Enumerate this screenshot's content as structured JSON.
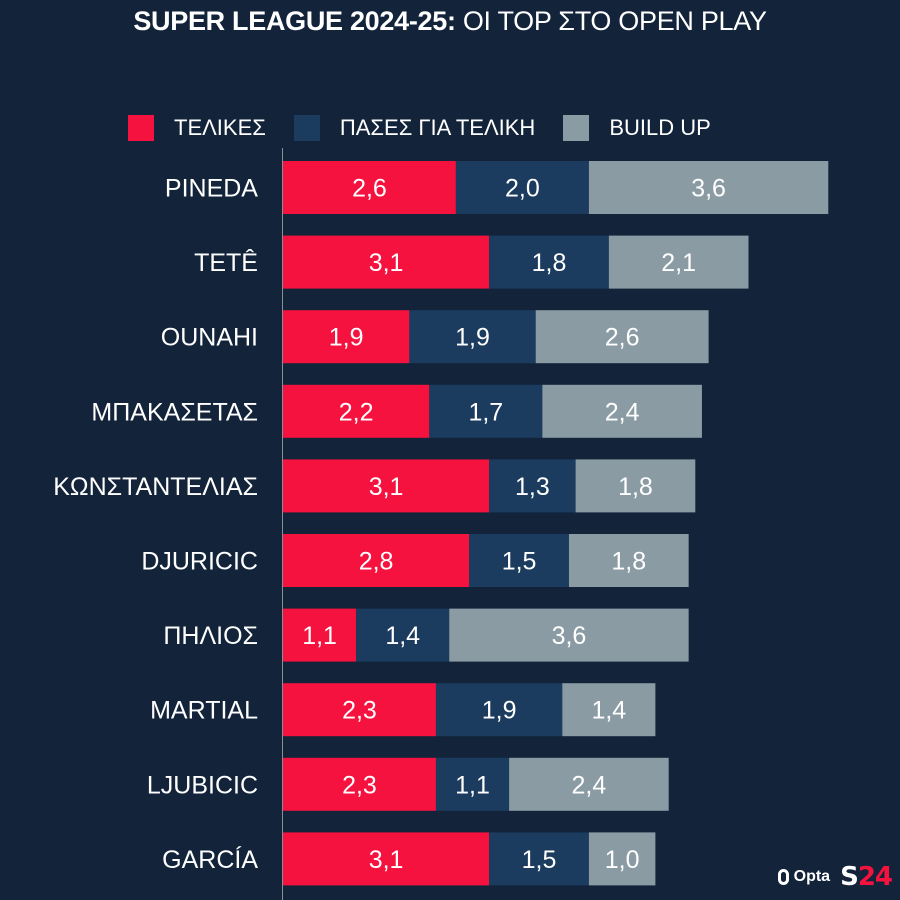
{
  "title": {
    "bold": "SUPER LEAGUE 2024-25:",
    "light": "ΟΙ ΤΟΡ ΣΤΟ OPEN PLAY"
  },
  "colors": {
    "background": "#12233a",
    "telikes": "#f5123f",
    "pases": "#1b3b5f",
    "buildup": "#8b9ba4",
    "axis": "#8a8f96"
  },
  "legend": [
    {
      "label": "ΤΕΛΙΚΕΣ",
      "color": "#f5123f"
    },
    {
      "label": "ΠΑΣΕΣ ΓΙΑ ΤΕΛΙΚΗ",
      "color": "#1b3b5f"
    },
    {
      "label": "BUILD UP",
      "color": "#8b9ba4"
    }
  ],
  "logos": {
    "opta": "Opta",
    "s24_s": "S",
    "s24_n": "24"
  },
  "chart_data": {
    "type": "bar",
    "orientation": "horizontal",
    "stacked": true,
    "title": "SUPER LEAGUE 2024-25: ΟΙ ΤΟΡ ΣΤΟ OPEN PLAY",
    "xlabel": "",
    "ylabel": "",
    "xlim": [
      0,
      8.2
    ],
    "grid": false,
    "legend_position": "top",
    "decimal_separator": ",",
    "categories": [
      "PINEDA",
      "TETÊ",
      "OUNAHI",
      "ΜΠΑΚΑΣΕΤΑΣ",
      "ΚΩΝΣΤΑΝΤΕΛΙΑΣ",
      "DJURICIC",
      "ΠΗΛΙΟΣ",
      "MARTIAL",
      "LJUBICIC",
      "GARCÍA"
    ],
    "series": [
      {
        "name": "ΤΕΛΙΚΕΣ",
        "color": "#f5123f",
        "values": [
          2.6,
          3.1,
          1.9,
          2.2,
          3.1,
          2.8,
          1.1,
          2.3,
          2.3,
          3.1
        ]
      },
      {
        "name": "ΠΑΣΕΣ ΓΙΑ ΤΕΛΙΚΗ",
        "color": "#1b3b5f",
        "values": [
          2.0,
          1.8,
          1.9,
          1.7,
          1.3,
          1.5,
          1.4,
          1.9,
          1.1,
          1.5
        ]
      },
      {
        "name": "BUILD UP",
        "color": "#8b9ba4",
        "values": [
          3.6,
          2.1,
          2.6,
          2.4,
          1.8,
          1.8,
          3.6,
          1.4,
          2.4,
          1.0
        ]
      }
    ]
  }
}
